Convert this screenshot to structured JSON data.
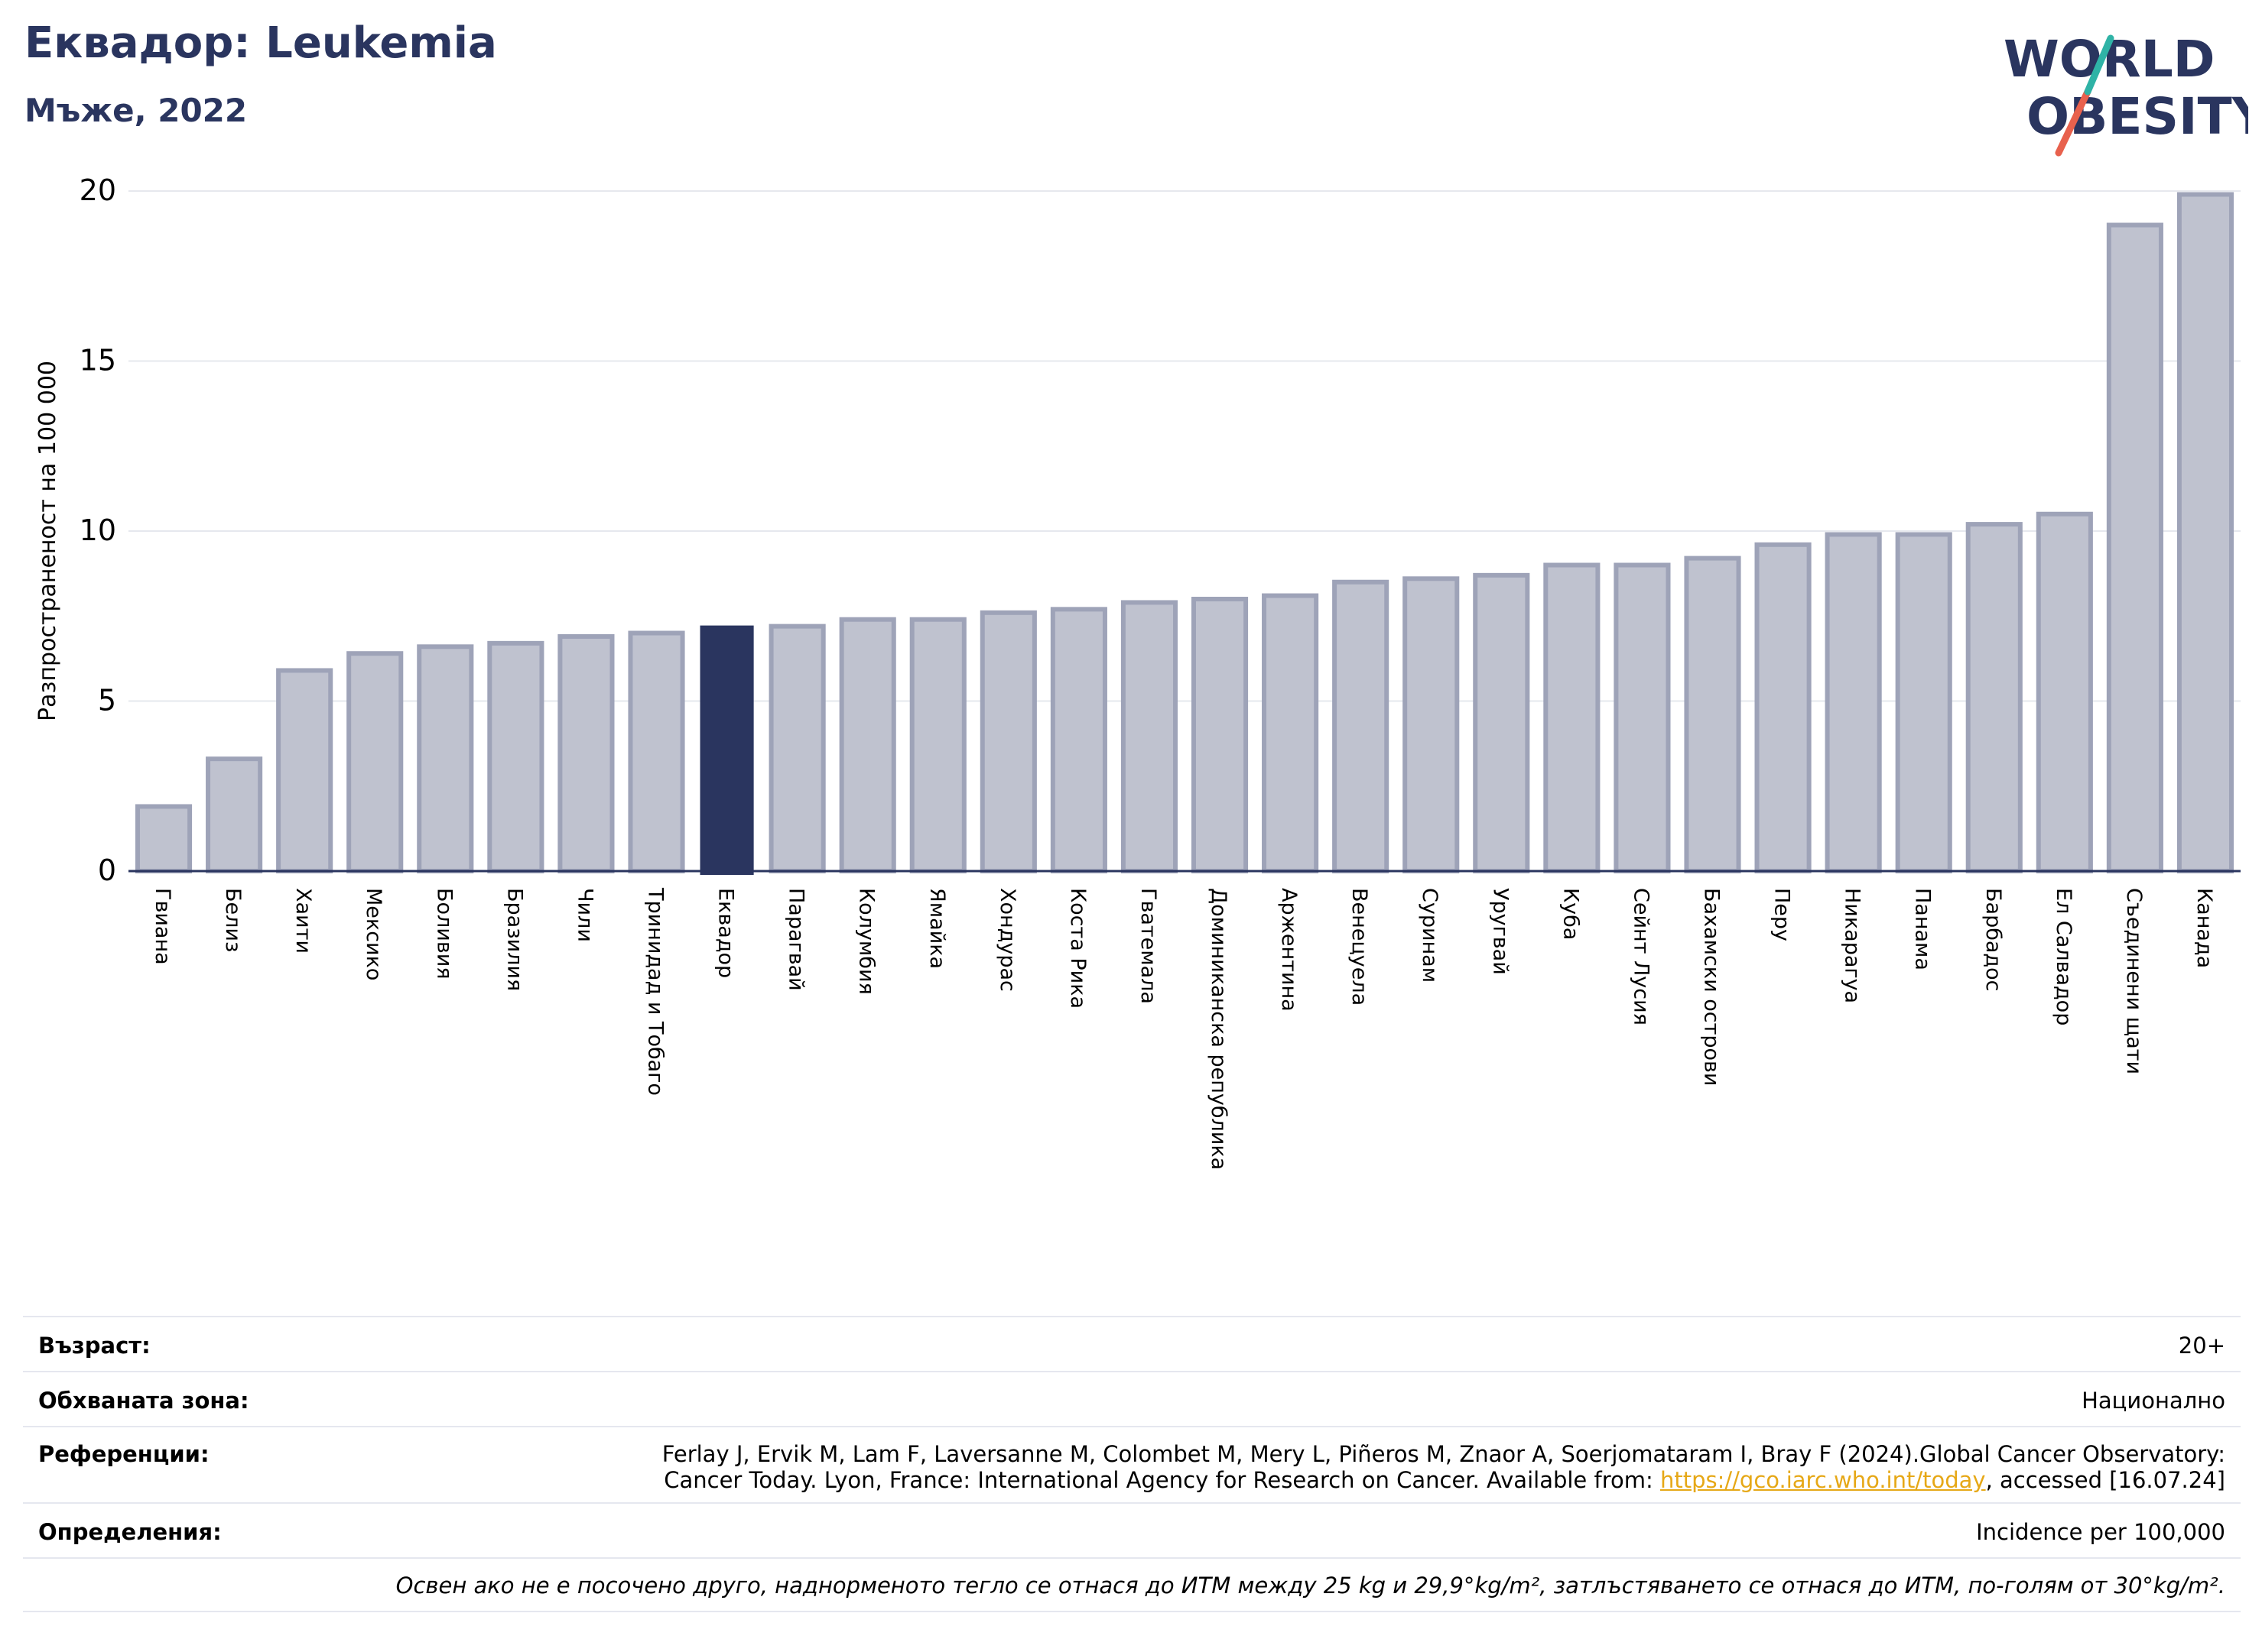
{
  "header": {
    "title": "Еквадор: Leukemia",
    "subtitle": "Мъже, 2022"
  },
  "logo": {
    "line1": "WORLD",
    "line2": "OBESITY"
  },
  "chart_data": {
    "type": "bar",
    "title": "Еквадор: Leukemia",
    "subtitle": "Мъже, 2022",
    "ylabel": "Разпространеност  на 100 000",
    "xlabel": "",
    "ylim": [
      0,
      20
    ],
    "yticks": [
      "0",
      "5",
      "10",
      "15",
      "20"
    ],
    "ytick_values": [
      0,
      5,
      10,
      15,
      20
    ],
    "grid": true,
    "highlight": "Еквадор",
    "colors": {
      "bar": "#bfc2cf",
      "bar_edge": "#9ea3b8",
      "highlight": "#2a355f",
      "grid": "#e6e8ee",
      "axis": "#2a355f"
    },
    "categories": [
      "Гвиана",
      "Белиз",
      "Хаити",
      "Мексико",
      "Боливия",
      "Бразилия",
      "Чили",
      "Тринидад и Тобаго",
      "Еквадор",
      "Парагвай",
      "Колумбия",
      "Ямайка",
      "Хондурас",
      "Коста Рика",
      "Гватемала",
      "Доминиканска република",
      "Аржентина",
      "Венецуела",
      "Суринам",
      "Уругвай",
      "Куба",
      "Сейнт Лусия",
      "Бахамски острови",
      "Перу",
      "Никарагуа",
      "Панама",
      "Барбадос",
      "Ел Салвадор",
      "Съединени щати",
      "Канада"
    ],
    "values": [
      1.9,
      3.3,
      5.9,
      6.4,
      6.6,
      6.7,
      6.9,
      7.0,
      7.2,
      7.2,
      7.4,
      7.4,
      7.6,
      7.7,
      7.9,
      8.0,
      8.1,
      8.5,
      8.6,
      8.7,
      9.0,
      9.0,
      9.2,
      9.6,
      9.9,
      9.9,
      10.2,
      10.5,
      19.0,
      19.9
    ]
  },
  "info": {
    "age_label": "Възраст:",
    "age_value": "20+",
    "area_label": "Обхваната зона:",
    "area_value": "Национално",
    "refs_label": "Референции:",
    "refs_line1": "Ferlay J, Ervik M, Lam F, Laversanne M, Colombet M, Mery L, Piñeros M, Znaor A, Soerjomataram I, Bray F (2024).Global Cancer Observatory:",
    "refs_line2_pre": "Cancer Today. Lyon, France: International Agency for Research on Cancer. Available from: ",
    "refs_link": "https://gco.iarc.who.int/today",
    "refs_line2_post": ", accessed [16.07.24]",
    "defs_label": "Определения:",
    "defs_value": "Incidence per 100,000",
    "footnote": "Освен ако не е посочено друго, наднорменото тегло се отнася до ИТМ между 25 kg и 29,9°kg/m², затлъстяването се отнася до ИТМ, по-голям от 30°kg/m²."
  }
}
